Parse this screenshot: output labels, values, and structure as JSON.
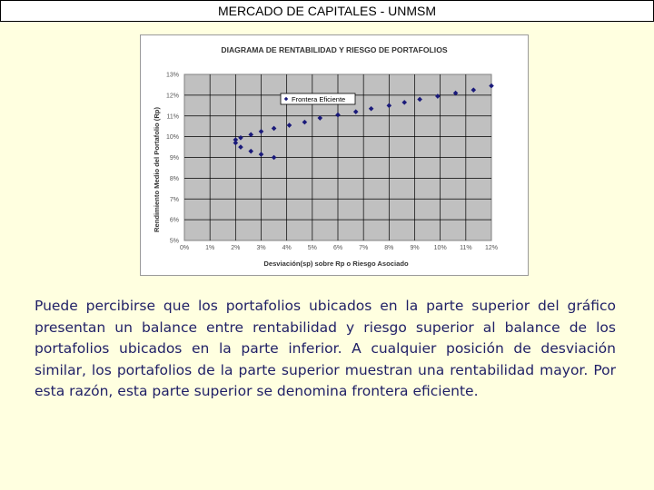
{
  "header": {
    "title": "MERCADO DE CAPITALES - UNMSM"
  },
  "chart_data": {
    "type": "scatter",
    "title": "DIAGRAMA DE RENTABILIDAD Y RIESGO DE PORTAFOLIOS",
    "xlabel": "Desviación(sp) sobre Rp o Riesgo Asociado",
    "ylabel": "Rendimiento Medio del Portafolio (Rp)",
    "xlim": [
      0,
      12
    ],
    "ylim": [
      5,
      13
    ],
    "x_ticks": [
      "0%",
      "1%",
      "2%",
      "3%",
      "4%",
      "5%",
      "6%",
      "7%",
      "8%",
      "9%",
      "10%",
      "11%",
      "12%"
    ],
    "y_ticks": [
      "5%",
      "6%",
      "7%",
      "8%",
      "9%",
      "10%",
      "11%",
      "12%",
      "13%"
    ],
    "grid": "on",
    "legend_position": "top-left",
    "series": [
      {
        "name": "Frontera Eficiente",
        "color": "#1a1a7a",
        "points": [
          [
            2.0,
            9.85
          ],
          [
            2.0,
            9.7
          ],
          [
            2.2,
            9.95
          ],
          [
            2.6,
            10.1
          ],
          [
            3.0,
            10.25
          ],
          [
            3.5,
            10.4
          ],
          [
            4.1,
            10.55
          ],
          [
            4.7,
            10.7
          ],
          [
            5.3,
            10.9
          ],
          [
            6.0,
            11.05
          ],
          [
            6.7,
            11.2
          ],
          [
            7.3,
            11.35
          ],
          [
            8.0,
            11.5
          ],
          [
            8.6,
            11.65
          ],
          [
            9.2,
            11.8
          ],
          [
            9.9,
            11.95
          ],
          [
            10.6,
            12.1
          ],
          [
            11.3,
            12.25
          ],
          [
            12.0,
            12.45
          ],
          [
            2.2,
            9.5
          ],
          [
            2.6,
            9.3
          ],
          [
            3.0,
            9.15
          ],
          [
            3.5,
            9.0
          ]
        ]
      }
    ]
  },
  "body": {
    "paragraph": "Puede percibirse que los portafolios ubicados en la parte superior del gráfico presentan un balance entre rentabilidad y riesgo superior al balance de los portafolios ubicados en la parte  inferior. A cualquier posición de desviación similar, los portafolios de la parte superior muestran una rentabilidad mayor. Por esta razón, esta parte superior se denomina frontera eficiente."
  }
}
